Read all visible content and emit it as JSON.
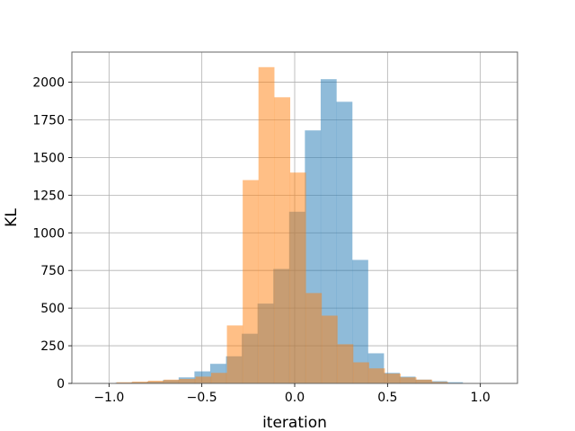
{
  "chart_data": {
    "type": "histogram",
    "title": "",
    "xlabel": "iteration",
    "ylabel": "KL",
    "xlim": [
      -1.2,
      1.2
    ],
    "ylim": [
      0,
      2200
    ],
    "xticks": [
      -1.0,
      -0.5,
      0.0,
      0.5,
      1.0
    ],
    "xtick_labels": [
      "−1.0",
      "−0.5",
      "0.0",
      "0.5",
      "1.0"
    ],
    "yticks": [
      0,
      250,
      500,
      750,
      1000,
      1250,
      1500,
      1750,
      2000
    ],
    "ytick_labels": [
      "0",
      "250",
      "500",
      "750",
      "1000",
      "1250",
      "1500",
      "1750",
      "2000"
    ],
    "grid": true,
    "legend": "none",
    "series": [
      {
        "color": "#1f77b4",
        "opacity": 0.5,
        "bin_start": -1.05,
        "bin_width": 0.085,
        "counts": [
          2,
          5,
          8,
          12,
          22,
          40,
          80,
          130,
          180,
          330,
          530,
          760,
          1140,
          1680,
          2020,
          1870,
          820,
          200,
          70,
          45,
          25,
          15,
          8,
          3
        ]
      },
      {
        "color": "#ff7f0e",
        "opacity": 0.5,
        "bin_start": -0.96,
        "bin_width": 0.085,
        "counts": [
          8,
          12,
          18,
          25,
          30,
          45,
          70,
          385,
          1350,
          2100,
          1900,
          1400,
          600,
          450,
          260,
          140,
          100,
          65,
          40,
          25,
          10
        ]
      }
    ]
  }
}
